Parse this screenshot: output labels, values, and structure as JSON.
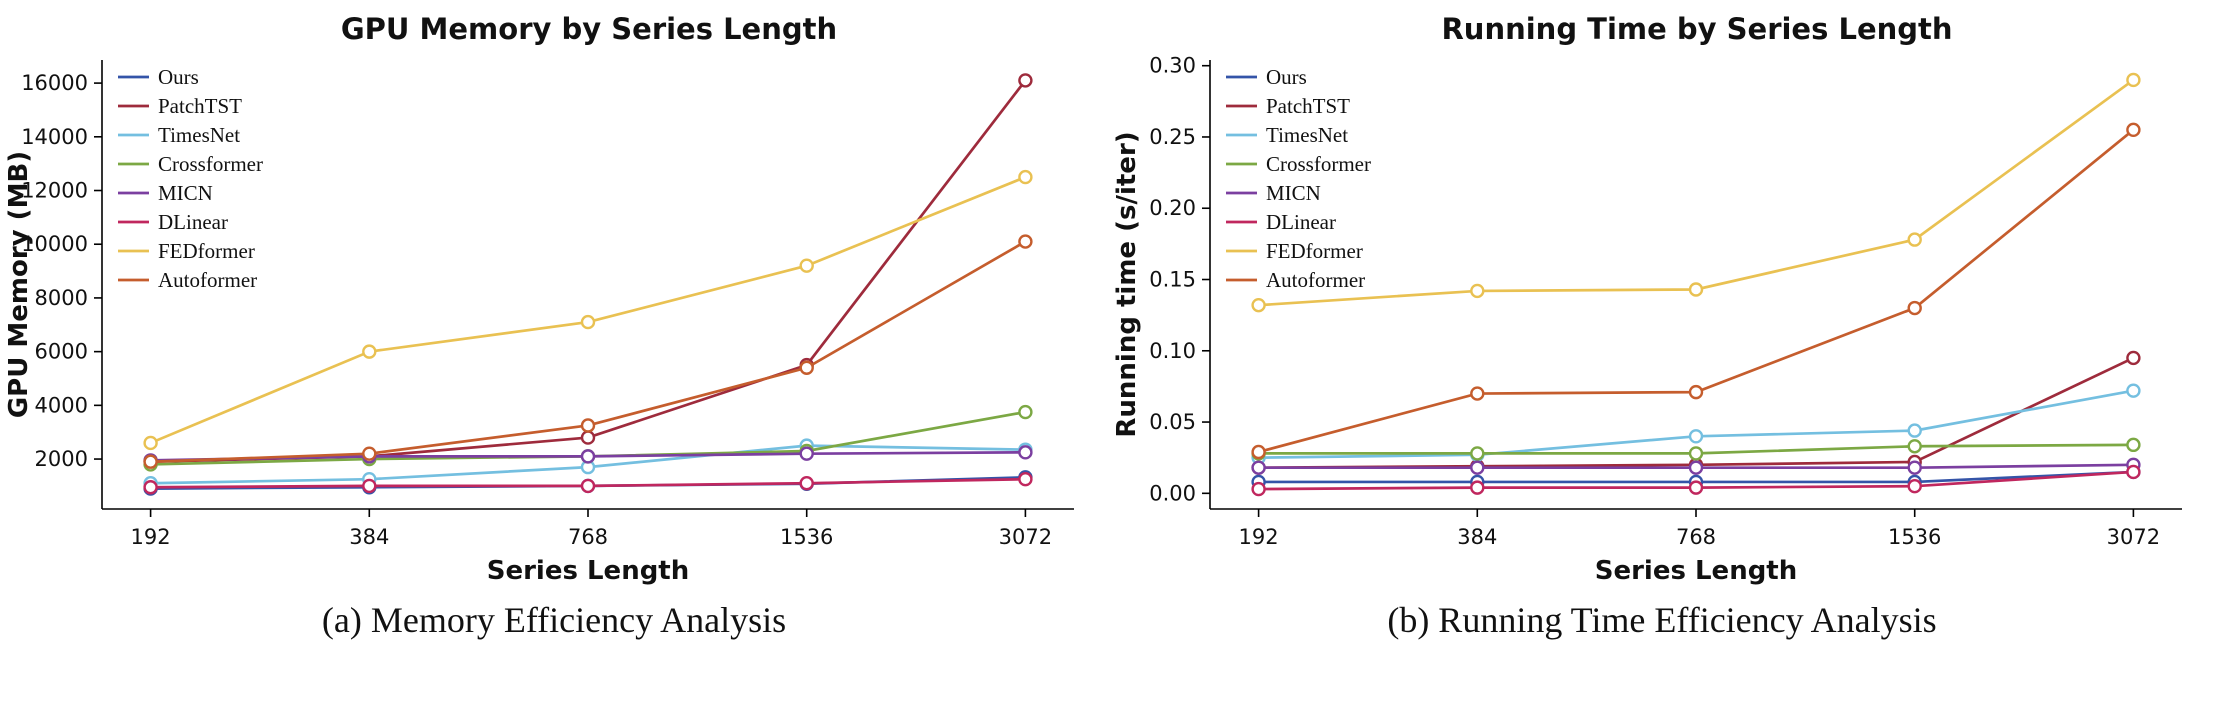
{
  "page": {
    "background": "#ffffff"
  },
  "charts": [
    {
      "title": "GPU Memory by Series Length",
      "caption": "(a) Memory Efficiency Analysis",
      "chart_data": {
        "type": "line",
        "x_categories": [
          "192",
          "384",
          "768",
          "1536",
          "3072"
        ],
        "xlabel": "Series Length",
        "ylabel": "GPU Memory (MB)",
        "ylim": [
          140,
          16860
        ],
        "yticks": [
          {
            "v": 2000,
            "label": "2000"
          },
          {
            "v": 4000,
            "label": "4000"
          },
          {
            "v": 6000,
            "label": "6000"
          },
          {
            "v": 8000,
            "label": "8000"
          },
          {
            "v": 10000,
            "label": "10000"
          },
          {
            "v": 12000,
            "label": "12000"
          },
          {
            "v": 14000,
            "label": "14000"
          },
          {
            "v": 16000,
            "label": "16000"
          }
        ],
        "legend_position": "upper-left",
        "grid": false,
        "series": [
          {
            "name": "Ours",
            "color": "#3454a8",
            "values": [
              900,
              950,
              1000,
              1080,
              1320
            ]
          },
          {
            "name": "PatchTST",
            "color": "#9e2b3c",
            "values": [
              1900,
              2100,
              2800,
              5500,
              16100
            ]
          },
          {
            "name": "TimesNet",
            "color": "#74bfe0",
            "values": [
              1100,
              1250,
              1700,
              2500,
              2350
            ]
          },
          {
            "name": "Crossformer",
            "color": "#7ca844",
            "values": [
              1800,
              2000,
              2100,
              2300,
              3750
            ]
          },
          {
            "name": "MICN",
            "color": "#7b3fa0",
            "values": [
              1950,
              2100,
              2100,
              2200,
              2250
            ]
          },
          {
            "name": "DLinear",
            "color": "#c0275e",
            "values": [
              950,
              1000,
              1000,
              1100,
              1250
            ]
          },
          {
            "name": "FEDformer",
            "color": "#e9c152",
            "values": [
              2600,
              6000,
              7100,
              9200,
              12500
            ]
          },
          {
            "name": "Autoformer",
            "color": "#c55d2d",
            "values": [
              1900,
              2200,
              3250,
              5400,
              10100
            ]
          }
        ]
      }
    },
    {
      "title": "Running Time by Series Length",
      "caption": "(b) Running Time Efficiency Analysis",
      "chart_data": {
        "type": "line",
        "x_categories": [
          "192",
          "384",
          "768",
          "1536",
          "3072"
        ],
        "xlabel": "Series Length",
        "ylabel": "Running time (s/iter)",
        "ylim": [
          -0.011,
          0.304
        ],
        "yticks": [
          {
            "v": 0.0,
            "label": "0.00"
          },
          {
            "v": 0.05,
            "label": "0.05"
          },
          {
            "v": 0.1,
            "label": "0.10"
          },
          {
            "v": 0.15,
            "label": "0.15"
          },
          {
            "v": 0.2,
            "label": "0.20"
          },
          {
            "v": 0.25,
            "label": "0.25"
          },
          {
            "v": 0.3,
            "label": "0.30"
          }
        ],
        "legend_position": "upper-left",
        "grid": false,
        "series": [
          {
            "name": "Ours",
            "color": "#3454a8",
            "values": [
              0.008,
              0.008,
              0.008,
              0.008,
              0.015
            ]
          },
          {
            "name": "PatchTST",
            "color": "#9e2b3c",
            "values": [
              0.018,
              0.019,
              0.02,
              0.022,
              0.095
            ]
          },
          {
            "name": "TimesNet",
            "color": "#74bfe0",
            "values": [
              0.025,
              0.027,
              0.04,
              0.044,
              0.072
            ]
          },
          {
            "name": "Crossformer",
            "color": "#7ca844",
            "values": [
              0.028,
              0.028,
              0.028,
              0.033,
              0.034
            ]
          },
          {
            "name": "MICN",
            "color": "#7b3fa0",
            "values": [
              0.018,
              0.018,
              0.018,
              0.018,
              0.02
            ]
          },
          {
            "name": "DLinear",
            "color": "#c0275e",
            "values": [
              0.003,
              0.004,
              0.004,
              0.005,
              0.015
            ]
          },
          {
            "name": "FEDformer",
            "color": "#e9c152",
            "values": [
              0.132,
              0.142,
              0.143,
              0.178,
              0.29
            ]
          },
          {
            "name": "Autoformer",
            "color": "#c55d2d",
            "values": [
              0.029,
              0.07,
              0.071,
              0.13,
              0.255
            ]
          }
        ]
      }
    }
  ]
}
